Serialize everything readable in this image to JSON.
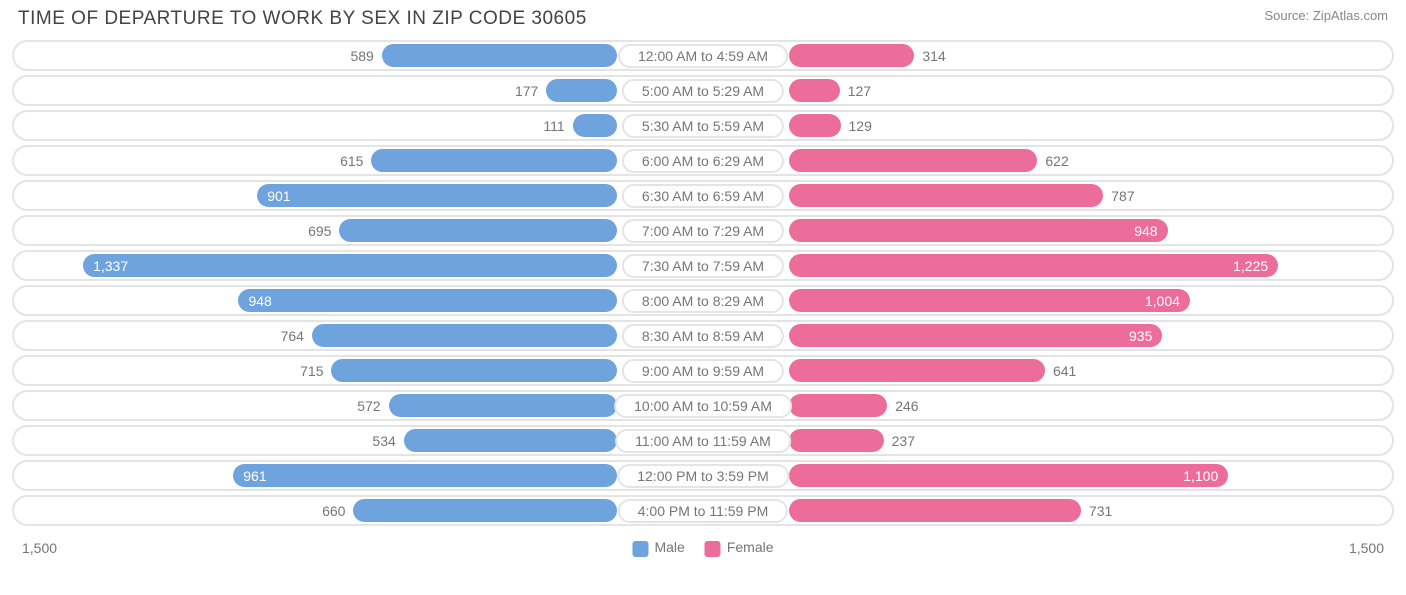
{
  "title": "TIME OF DEPARTURE TO WORK BY SEX IN ZIP CODE 30605",
  "source": "Source: ZipAtlas.com",
  "chart": {
    "type": "diverging-bar",
    "max": 1500,
    "axis_left_label": "1,500",
    "axis_right_label": "1,500",
    "label_inside_threshold": 850,
    "colors": {
      "male": "#6ea3dd",
      "female": "#ed6d9a",
      "row_border": "#e4e4e4",
      "text_muted": "#767676",
      "bar_text": "#ffffff",
      "background": "#ffffff"
    },
    "legend": [
      {
        "label": "Male",
        "color": "#6ea3dd"
      },
      {
        "label": "Female",
        "color": "#ed6d9a"
      }
    ],
    "rows": [
      {
        "category": "12:00 AM to 4:59 AM",
        "male": 589,
        "male_label": "589",
        "female": 314,
        "female_label": "314"
      },
      {
        "category": "5:00 AM to 5:29 AM",
        "male": 177,
        "male_label": "177",
        "female": 127,
        "female_label": "127"
      },
      {
        "category": "5:30 AM to 5:59 AM",
        "male": 111,
        "male_label": "111",
        "female": 129,
        "female_label": "129"
      },
      {
        "category": "6:00 AM to 6:29 AM",
        "male": 615,
        "male_label": "615",
        "female": 622,
        "female_label": "622"
      },
      {
        "category": "6:30 AM to 6:59 AM",
        "male": 901,
        "male_label": "901",
        "female": 787,
        "female_label": "787"
      },
      {
        "category": "7:00 AM to 7:29 AM",
        "male": 695,
        "male_label": "695",
        "female": 948,
        "female_label": "948"
      },
      {
        "category": "7:30 AM to 7:59 AM",
        "male": 1337,
        "male_label": "1,337",
        "female": 1225,
        "female_label": "1,225"
      },
      {
        "category": "8:00 AM to 8:29 AM",
        "male": 948,
        "male_label": "948",
        "female": 1004,
        "female_label": "1,004"
      },
      {
        "category": "8:30 AM to 8:59 AM",
        "male": 764,
        "male_label": "764",
        "female": 935,
        "female_label": "935"
      },
      {
        "category": "9:00 AM to 9:59 AM",
        "male": 715,
        "male_label": "715",
        "female": 641,
        "female_label": "641"
      },
      {
        "category": "10:00 AM to 10:59 AM",
        "male": 572,
        "male_label": "572",
        "female": 246,
        "female_label": "246"
      },
      {
        "category": "11:00 AM to 11:59 AM",
        "male": 534,
        "male_label": "534",
        "female": 237,
        "female_label": "237"
      },
      {
        "category": "12:00 PM to 3:59 PM",
        "male": 961,
        "male_label": "961",
        "female": 1100,
        "female_label": "1,100"
      },
      {
        "category": "4:00 PM to 11:59 PM",
        "male": 660,
        "male_label": "660",
        "female": 731,
        "female_label": "731"
      }
    ]
  }
}
